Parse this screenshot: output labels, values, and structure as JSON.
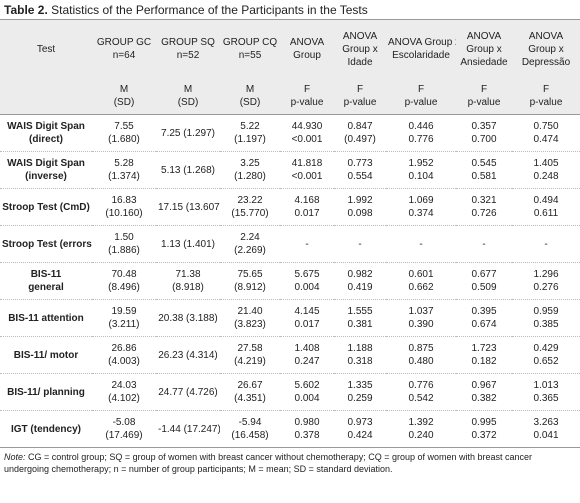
{
  "header": {
    "label": "Table 2.",
    "title": "Statistics of the Performance of the Participants in the Tests"
  },
  "table": {
    "header": [
      [
        "Test"
      ],
      [
        "GROUP GC",
        "n=64"
      ],
      [
        "GROUP SQ",
        "n=52"
      ],
      [
        "GROUP CQ",
        "n=55"
      ],
      [
        "ANOVA",
        "Group"
      ],
      [
        "ANOVA",
        "Group x",
        "Idade"
      ],
      [
        "ANOVA Group x",
        "Escolaridade"
      ],
      [
        "ANOVA",
        "Group x",
        "Ansiedade"
      ],
      [
        "ANOVA",
        "Group x",
        "Depressão"
      ]
    ],
    "subheader": [
      [
        "M",
        "(SD)"
      ],
      [
        "M",
        "(SD)"
      ],
      [
        "M",
        "(SD)"
      ],
      [
        "F",
        "p-value"
      ],
      [
        "F",
        "p-value"
      ],
      [
        "F",
        "p-value"
      ],
      [
        "F",
        "p-value"
      ],
      [
        "F",
        "p-value"
      ]
    ],
    "rows": [
      [
        [
          "WAIS Digit Span",
          "(direct)"
        ],
        [
          "7.55",
          "(1.680)"
        ],
        [
          "7.25 (1.297)"
        ],
        [
          "5.22",
          "(1.197)"
        ],
        [
          "44.930",
          "<0.001"
        ],
        [
          "0.847",
          "(0.497)"
        ],
        [
          "0.446",
          "0.776"
        ],
        [
          "0.357",
          "0.700"
        ],
        [
          "0.750",
          "0.474"
        ]
      ],
      [
        [
          "WAIS Digit Span",
          "(inverse)"
        ],
        [
          "5.28",
          "(1.374)"
        ],
        [
          "5.13 (1.268)"
        ],
        [
          "3.25",
          "(1.280)"
        ],
        [
          "41.818",
          "<0.001"
        ],
        [
          "0.773",
          "0.554"
        ],
        [
          "1.952",
          "0.104"
        ],
        [
          "0.545",
          "0.581"
        ],
        [
          "1.405",
          "0.248"
        ]
      ],
      [
        [
          "Stroop Test (CmD)"
        ],
        [
          "16.83",
          "(10.160)"
        ],
        [
          "17.15 (13.607)"
        ],
        [
          "23.22",
          "(15.770)"
        ],
        [
          "4.168",
          "0.017"
        ],
        [
          "1.992",
          "0.098"
        ],
        [
          "1.069",
          "0.374"
        ],
        [
          "0.321",
          "0.726"
        ],
        [
          "0.494",
          "0.611"
        ]
      ],
      [
        [
          "Stroop Test (errors)"
        ],
        [
          "1.50",
          "(1.886)"
        ],
        [
          "1.13 (1.401)"
        ],
        [
          "2.24",
          "(2.269)"
        ],
        [
          "-"
        ],
        [
          "-"
        ],
        [
          "-"
        ],
        [
          "-"
        ],
        [
          "-"
        ]
      ],
      [
        [
          "BIS-11",
          "general"
        ],
        [
          "70.48",
          "(8.496)"
        ],
        [
          "71.38",
          "(8.918)"
        ],
        [
          "75.65",
          "(8.912)"
        ],
        [
          "5.675",
          "0.004"
        ],
        [
          "0.982",
          "0.419"
        ],
        [
          "0.601",
          "0.662"
        ],
        [
          "0.677",
          "0.509"
        ],
        [
          "1.296",
          "0.276"
        ]
      ],
      [
        [
          "BIS-11 attention"
        ],
        [
          "19.59",
          "(3.211)"
        ],
        [
          "20.38 (3.188)"
        ],
        [
          "21.40",
          "(3.823)"
        ],
        [
          "4.145",
          "0.017"
        ],
        [
          "1.555",
          "0.381"
        ],
        [
          "1.037",
          "0.390"
        ],
        [
          "0.395",
          "0.674"
        ],
        [
          "0.959",
          "0.385"
        ]
      ],
      [
        [
          "BIS-11/ motor"
        ],
        [
          "26.86",
          "(4.003)"
        ],
        [
          "26.23 (4.314)"
        ],
        [
          "27.58",
          "(4.219)"
        ],
        [
          "1.408",
          "0.247"
        ],
        [
          "1.188",
          "0.318"
        ],
        [
          "0.875",
          "0.480"
        ],
        [
          "1.723",
          "0.182"
        ],
        [
          "0.429",
          "0.652"
        ]
      ],
      [
        [
          "BIS-11/ planning"
        ],
        [
          "24.03",
          "(4.102)"
        ],
        [
          "24.77 (4.726)"
        ],
        [
          "26.67",
          "(4.351)"
        ],
        [
          "5.602",
          "0.004"
        ],
        [
          "1.335",
          "0.259"
        ],
        [
          "0.776",
          "0.542"
        ],
        [
          "0.967",
          "0.382"
        ],
        [
          "1.013",
          "0.365"
        ]
      ],
      [
        [
          "IGT (tendency)"
        ],
        [
          "-5.08",
          "(17.469)"
        ],
        [
          "-1.44 (17.247)"
        ],
        [
          "-5.94",
          "(16.458)"
        ],
        [
          "0.980",
          "0.378"
        ],
        [
          "0.973",
          "0.424"
        ],
        [
          "1.392",
          "0.240"
        ],
        [
          "0.995",
          "0.372"
        ],
        [
          "3.263",
          "0.041"
        ]
      ]
    ]
  },
  "note": {
    "label": "Note:",
    "text": "CG = control group; SQ = group of women with breast cancer without chemotherapy; CQ = group of women with breast cancer undergoing chemotherapy; n = number of group participants; M = mean; SD = standard deviation."
  }
}
